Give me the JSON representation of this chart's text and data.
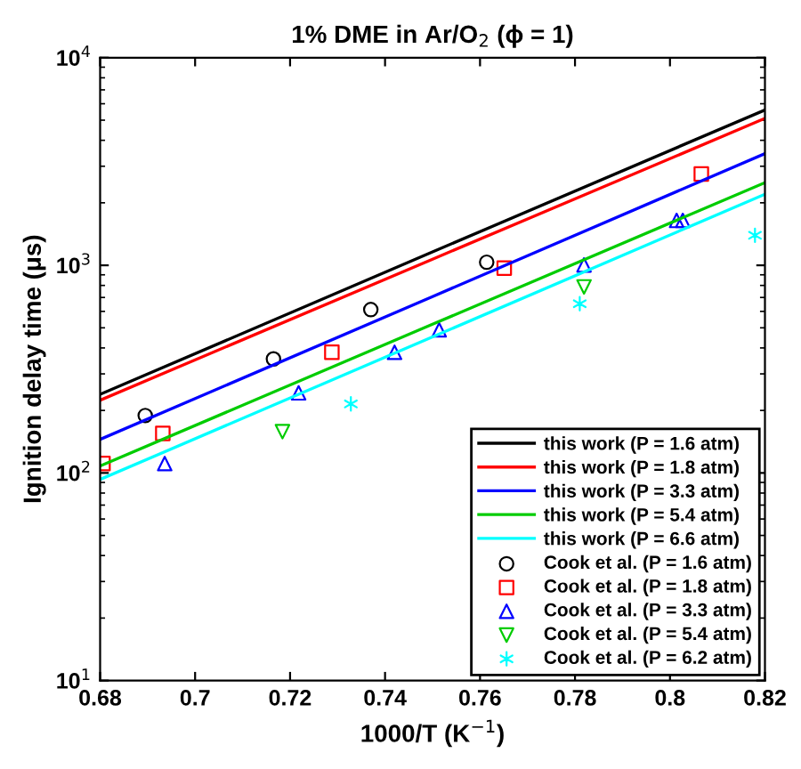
{
  "chart_data": {
    "type": "line",
    "title": "1% DME in Ar/O$_{2}$ (ϕ = 1)",
    "xlabel": "1000/T (K$^{−1}$)",
    "ylabel": "Ignition delay time (μs)",
    "log": "y",
    "xlim": [
      0.68,
      0.82
    ],
    "xticks": [
      0.68,
      0.7,
      0.72,
      0.74,
      0.76,
      0.78,
      0.8,
      0.82
    ],
    "ylim": [
      10,
      10000
    ],
    "yticks": [
      {
        "value": 10,
        "label": "10$^{1}$"
      },
      {
        "value": 100,
        "label": "10$^{2}$"
      },
      {
        "value": 1000,
        "label": "10$^{3}$"
      },
      {
        "value": 10000,
        "label": "10$^{4}$"
      }
    ],
    "grid": false,
    "legend": "bottom right",
    "series": [
      {
        "name": "this work (P = 1.6 atm)",
        "color": "#000000",
        "marker": "none",
        "line_style": "solid",
        "x": [
          0.68,
          0.75,
          0.82
        ],
        "values": [
          239,
          1160,
          5600
        ]
      },
      {
        "name": "this work (P = 1.8 atm)",
        "color": "#ff0000",
        "marker": "none",
        "line_style": "solid",
        "x": [
          0.68,
          0.75,
          0.82
        ],
        "values": [
          224,
          1070,
          5100
        ]
      },
      {
        "name": "this work (P = 3.3 atm)",
        "color": "#0000ff",
        "marker": "none",
        "line_style": "solid",
        "x": [
          0.68,
          0.75,
          0.82
        ],
        "values": [
          145,
          707,
          3450
        ]
      },
      {
        "name": "this work (P = 5.4 atm)",
        "color": "#00cc00",
        "marker": "none",
        "line_style": "solid",
        "x": [
          0.68,
          0.75,
          0.82
        ],
        "values": [
          108,
          520,
          2500
        ]
      },
      {
        "name": "this work (P = 6.6 atm)",
        "color": "#00ffff",
        "marker": "none",
        "line_style": "solid",
        "x": [
          0.68,
          0.75,
          0.82
        ],
        "values": [
          93,
          452,
          2200
        ]
      },
      {
        "name": "Cook et al. (P = 1.6 atm)",
        "type": "scatter",
        "color": "#000000",
        "marker": "circle",
        "x": [
          0.6895,
          0.7165,
          0.737,
          0.7614
        ],
        "values": [
          189,
          354,
          612,
          1035
        ]
      },
      {
        "name": "Cook et al. (P = 1.8 atm)",
        "type": "scatter",
        "color": "#ff0000",
        "marker": "square",
        "x": [
          0.6806,
          0.6932,
          0.7288,
          0.7651,
          0.8066
        ],
        "values": [
          111,
          155,
          381,
          970,
          2750
        ]
      },
      {
        "name": "Cook et al. (P = 3.3 atm)",
        "type": "scatter",
        "color": "#0000ff",
        "marker": "triangle",
        "x": [
          0.6936,
          0.7218,
          0.742,
          0.7514,
          0.7819,
          0.8014,
          0.8027
        ],
        "values": [
          111,
          243,
          381,
          489,
          1004,
          1645,
          1645
        ]
      },
      {
        "name": "Cook et al. (P = 5.4 atm)",
        "type": "scatter",
        "color": "#00cc00",
        "marker": "triangle_down",
        "x": [
          0.7184,
          0.7819
        ],
        "values": [
          158,
          787
        ]
      },
      {
        "name": "Cook et al. (P = 6.2 atm)",
        "type": "scatter",
        "color": "#00ffff",
        "marker": "cross",
        "x": [
          0.7328,
          0.781,
          0.8179
        ],
        "values": [
          215,
          653,
          1395
        ]
      }
    ]
  }
}
